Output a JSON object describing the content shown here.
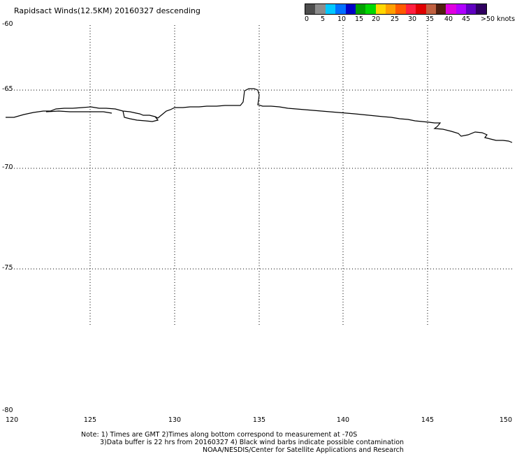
{
  "title": "Rapidsact Winds(12.5KM) 20160327 descending",
  "colorbar": {
    "colors": [
      "#4d4d4d",
      "#8c8c8c",
      "#00c8ff",
      "#0070ff",
      "#0000c8",
      "#00a000",
      "#00d800",
      "#ffd700",
      "#ff9f00",
      "#ff5a00",
      "#ff2040",
      "#e00000",
      "#c06040",
      "#502010",
      "#e000e0",
      "#b000ff",
      "#6000c0",
      "#300060"
    ],
    "labels": [
      "0",
      "5",
      "10",
      "15",
      "20",
      "25",
      "30",
      "35",
      "40",
      "45",
      ">50 knots"
    ]
  },
  "map": {
    "lon_ticks": [
      "120",
      "125",
      "130",
      "135",
      "140",
      "145",
      "150"
    ],
    "lat_ticks": [
      "-60",
      "-65",
      "-70",
      "-75",
      "-80"
    ],
    "lon_range": [
      120,
      150
    ],
    "lat_range": [
      -80,
      -60
    ],
    "grid": "dotted"
  },
  "notes": {
    "line1": "Note: 1) Times are GMT 2)Times along bottom correspond to measurement at -70S",
    "line2": "3)Data buffer is 22 hrs from 20160327 4) Black wind barbs indicate possible contamination",
    "line3": "NOAA/NESDIS/Center for Satellite Applications and Research"
  }
}
